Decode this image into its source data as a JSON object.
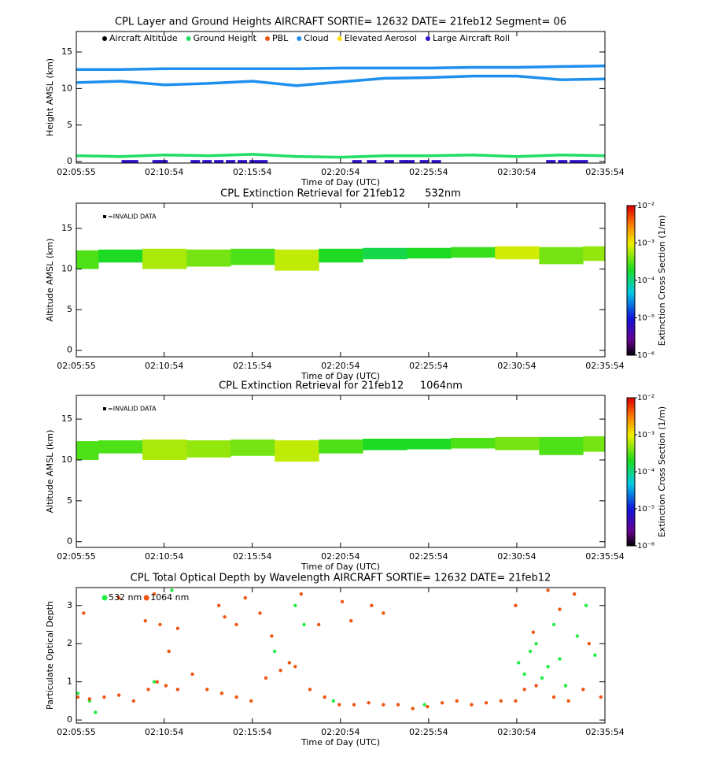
{
  "chart_data": [
    {
      "type": "layers",
      "title": "CPL Layer and Ground Heights AIRCRAFT SORTIE= 12632 DATE= 21feb12 Segment= 06",
      "ylabel": "Height AMSL (km)",
      "xlabel": "Time of Day (UTC)",
      "xlim": [
        7555,
        9354
      ],
      "xticks": [
        {
          "value": 7555,
          "label": "02:05:55"
        },
        {
          "value": 7854,
          "label": "02:10:54"
        },
        {
          "value": 8154,
          "label": "02:15:54"
        },
        {
          "value": 8454,
          "label": "02:20:54"
        },
        {
          "value": 8754,
          "label": "02:25:54"
        },
        {
          "value": 9054,
          "label": "02:30:54"
        },
        {
          "value": 9354,
          "label": "02:35:54"
        }
      ],
      "ylim": [
        -0.2,
        17.8
      ],
      "yticks": [
        0,
        5,
        10,
        15
      ],
      "legend": [
        {
          "name": "Aircraft Altitude",
          "color": "#000000"
        },
        {
          "name": "Ground Height",
          "color": "#22dd66"
        },
        {
          "name": "PBL",
          "color": "#ee5511"
        },
        {
          "name": "Cloud",
          "color": "#1e90ee"
        },
        {
          "name": "Elevated Aerosol",
          "color": "#ffdd00"
        },
        {
          "name": "Large Aircraft Roll",
          "color": "#3311cc"
        }
      ],
      "series": [
        {
          "color": "#1e90ee",
          "x": [
            7555,
            7705,
            7855,
            8005,
            8155,
            8305,
            8455,
            8605,
            8755,
            8905,
            9055,
            9205,
            9354
          ],
          "values": [
            12.6,
            12.6,
            12.7,
            12.7,
            12.7,
            12.7,
            12.8,
            12.8,
            12.8,
            12.9,
            12.9,
            13.0,
            13.1
          ]
        },
        {
          "color": "#1e90ee",
          "x": [
            7555,
            7705,
            7855,
            8005,
            8155,
            8305,
            8455,
            8605,
            8755,
            8905,
            9055,
            9205,
            9354
          ],
          "values": [
            10.8,
            11.0,
            10.5,
            10.7,
            11.0,
            10.4,
            10.9,
            11.4,
            11.5,
            11.7,
            11.7,
            11.2,
            11.3
          ]
        },
        {
          "color": "#22dd66",
          "x": [
            7555,
            7705,
            7855,
            8005,
            8155,
            8305,
            8455,
            8605,
            8755,
            8905,
            9055,
            9205,
            9354
          ],
          "values": [
            0.8,
            0.7,
            0.9,
            0.8,
            1.0,
            0.7,
            0.6,
            0.8,
            0.8,
            0.9,
            0.7,
            0.9,
            0.8
          ]
        },
        {
          "color": "#3311cc",
          "x": [
            7725,
            7750,
            7830,
            7850,
            7960,
            8000,
            8040,
            8080,
            8120,
            8160,
            8190,
            8510,
            8560,
            8620,
            8670,
            8690,
            8740,
            8780,
            9170,
            9210,
            9250,
            9280
          ],
          "values": [
            0,
            0,
            0,
            0,
            0,
            0,
            0,
            0,
            0,
            0,
            0,
            0,
            0,
            0,
            0,
            0,
            0,
            0,
            0,
            0,
            0,
            0
          ]
        }
      ]
    },
    {
      "type": "extinction",
      "title": "CPL Extinction Retrieval for 21feb12      532nm",
      "ylabel": "Altitude AMSL (km)",
      "xlabel": "Time of Day (UTC)",
      "invalid_label": "=INVALID DATA",
      "xlim": [
        7555,
        9354
      ],
      "xticks": [
        {
          "value": 7555,
          "label": "02:05:55"
        },
        {
          "value": 7854,
          "label": "02:10:54"
        },
        {
          "value": 8154,
          "label": "02:15:54"
        },
        {
          "value": 8454,
          "label": "02:20:54"
        },
        {
          "value": 8754,
          "label": "02:25:54"
        },
        {
          "value": 9054,
          "label": "02:30:54"
        },
        {
          "value": 9354,
          "label": "02:35:54"
        }
      ],
      "ylim": [
        -0.8,
        18.1
      ],
      "yticks": [
        0,
        5,
        10,
        15
      ],
      "x": [
        7555,
        7705,
        7855,
        8005,
        8155,
        8305,
        8455,
        8605,
        8755,
        8905,
        9055,
        9205,
        9354
      ],
      "layer_top": [
        12.3,
        12.4,
        12.5,
        12.4,
        12.5,
        12.4,
        12.5,
        12.6,
        12.6,
        12.7,
        12.8,
        12.7,
        12.8
      ],
      "layer_base": [
        10.0,
        10.8,
        10.0,
        10.3,
        10.5,
        9.8,
        10.8,
        11.2,
        11.3,
        11.4,
        11.2,
        10.6,
        11.0
      ],
      "extinction": [
        0.0003,
        0.0002,
        0.0006,
        0.0004,
        0.0003,
        0.0007,
        0.0002,
        0.00015,
        0.0002,
        0.00025,
        0.0008,
        0.0004,
        0.0005
      ],
      "colorbar": {
        "label": "Extinction Cross Section (1/m)",
        "lim": [
          1e-06,
          0.01
        ],
        "log": true,
        "ticks": [
          {
            "value": 1e-06,
            "label": "10⁻⁶"
          },
          {
            "value": 1e-05,
            "label": "10⁻⁵"
          },
          {
            "value": 0.0001,
            "label": "10⁻⁴"
          },
          {
            "value": 0.001,
            "label": "10⁻³"
          },
          {
            "value": 0.01,
            "label": "10⁻²"
          }
        ]
      }
    },
    {
      "type": "extinction",
      "title": "CPL Extinction Retrieval for 21feb12     1064nm",
      "ylabel": "Altitude AMSL (km)",
      "xlabel": "Time of Day (UTC)",
      "invalid_label": "=INVALID DATA",
      "xlim": [
        7555,
        9354
      ],
      "xticks": [
        {
          "value": 7555,
          "label": "02:05:55"
        },
        {
          "value": 7854,
          "label": "02:10:54"
        },
        {
          "value": 8154,
          "label": "02:15:54"
        },
        {
          "value": 8454,
          "label": "02:20:54"
        },
        {
          "value": 8754,
          "label": "02:25:54"
        },
        {
          "value": 9054,
          "label": "02:30:54"
        },
        {
          "value": 9354,
          "label": "02:35:54"
        }
      ],
      "ylim": [
        -0.7,
        17.9
      ],
      "yticks": [
        0,
        5,
        10,
        15
      ],
      "x": [
        7555,
        7705,
        7855,
        8005,
        8155,
        8305,
        8455,
        8605,
        8755,
        8905,
        9055,
        9205,
        9354
      ],
      "layer_top": [
        12.3,
        12.4,
        12.5,
        12.4,
        12.5,
        12.4,
        12.5,
        12.6,
        12.6,
        12.7,
        12.8,
        12.8,
        12.9
      ],
      "layer_base": [
        10.0,
        10.8,
        10.0,
        10.3,
        10.5,
        9.8,
        10.8,
        11.2,
        11.3,
        11.4,
        11.2,
        10.6,
        11.0
      ],
      "extinction": [
        0.0003,
        0.0003,
        0.0006,
        0.0005,
        0.0004,
        0.0007,
        0.0003,
        0.0002,
        0.0002,
        0.0003,
        0.0004,
        0.0003,
        0.0004
      ],
      "colorbar": {
        "label": "Extinction Cross Section (1/m)",
        "lim": [
          1e-06,
          0.01
        ],
        "log": true,
        "ticks": [
          {
            "value": 1e-06,
            "label": "10⁻⁶"
          },
          {
            "value": 1e-05,
            "label": "10⁻⁵"
          },
          {
            "value": 0.0001,
            "label": "10⁻⁴"
          },
          {
            "value": 0.001,
            "label": "10⁻³"
          },
          {
            "value": 0.01,
            "label": "10⁻²"
          }
        ]
      }
    },
    {
      "type": "scatter",
      "title": "CPL Total Optical Depth by Wavelength AIRCRAFT SORTIE= 12632 DATE= 21feb12",
      "ylabel": "Particulate Optical Depth",
      "xlabel": "Time of Day (UTC)",
      "xlim": [
        7555,
        9354
      ],
      "xticks": [
        {
          "value": 7555,
          "label": "02:05:55"
        },
        {
          "value": 7854,
          "label": "02:10:54"
        },
        {
          "value": 8154,
          "label": "02:15:54"
        },
        {
          "value": 8454,
          "label": "02:20:54"
        },
        {
          "value": 8754,
          "label": "02:25:54"
        },
        {
          "value": 9054,
          "label": "02:30:54"
        },
        {
          "value": 9354,
          "label": "02:35:54"
        }
      ],
      "ylim": [
        -0.08,
        3.47
      ],
      "yticks": [
        0,
        1,
        2,
        3
      ],
      "series": [
        {
          "name": "532 nm",
          "color": "#22ee44",
          "x": [
            7560,
            7600,
            7620,
            7820,
            7880,
            8230,
            8300,
            8330,
            8430,
            8740,
            9060,
            9080,
            9100,
            9120,
            9140,
            9160,
            9180,
            9200,
            9220,
            9260,
            9290,
            9320
          ],
          "values": [
            0.7,
            0.5,
            0.2,
            1.0,
            3.4,
            1.8,
            3.0,
            2.5,
            0.5,
            0.4,
            1.5,
            1.2,
            1.8,
            2.0,
            1.1,
            1.4,
            2.5,
            1.6,
            0.9,
            2.2,
            3.0,
            1.7
          ]
        },
        {
          "name": "1064 nm",
          "color": "#ee5511",
          "x": [
            7560,
            7600,
            7650,
            7700,
            7750,
            7800,
            7830,
            7860,
            7900,
            7950,
            8000,
            8050,
            8100,
            8150,
            8200,
            8250,
            8280,
            8300,
            8350,
            8400,
            8450,
            8500,
            8550,
            8600,
            8650,
            8700,
            8750,
            8800,
            8850,
            8900,
            8950,
            9000,
            9050,
            9080,
            9120,
            9180,
            9230,
            9280,
            9340,
            7580,
            7700,
            7790,
            7820,
            7840,
            7870,
            7900,
            8040,
            8060,
            8100,
            8130,
            8180,
            8220,
            8320,
            8380,
            8460,
            8490,
            8560,
            8600,
            9050,
            9110,
            9160,
            9200,
            9250,
            9300
          ],
          "values": [
            0.6,
            0.55,
            0.6,
            0.65,
            0.5,
            0.8,
            1.0,
            0.9,
            0.8,
            1.2,
            0.8,
            0.7,
            0.6,
            0.5,
            1.1,
            1.3,
            1.5,
            1.4,
            0.8,
            0.6,
            0.4,
            0.4,
            0.45,
            0.4,
            0.4,
            0.3,
            0.35,
            0.45,
            0.5,
            0.4,
            0.45,
            0.5,
            0.5,
            0.8,
            0.9,
            0.6,
            0.5,
            0.8,
            0.6,
            2.8,
            3.2,
            2.6,
            3.3,
            2.5,
            1.8,
            2.4,
            3.0,
            2.7,
            2.5,
            3.2,
            2.8,
            2.2,
            3.3,
            2.5,
            3.1,
            2.6,
            3.0,
            2.8,
            3.0,
            2.3,
            3.4,
            2.9,
            3.3,
            2.0
          ]
        }
      ]
    }
  ]
}
